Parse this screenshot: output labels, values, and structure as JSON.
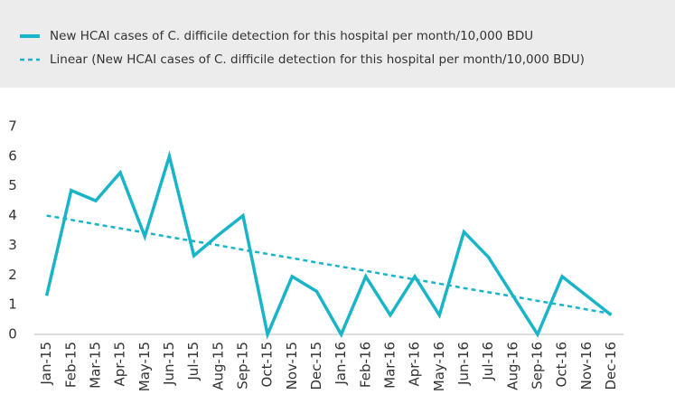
{
  "chart_data": {
    "type": "line",
    "categories": [
      "Jan-15",
      "Feb-15",
      "Mar-15",
      "Apr-15",
      "May-15",
      "Jun-15",
      "Jul-15",
      "Aug-15",
      "Sep-15",
      "Oct-15",
      "Nov-15",
      "Dec-15",
      "Jan-16",
      "Feb-16",
      "Mar-16",
      "Apr-16",
      "May-16",
      "Jun-16",
      "Jul-16",
      "Aug-16",
      "Sep-16",
      "Oct-16",
      "Nov-16",
      "Dec-16"
    ],
    "series": [
      {
        "name": "New HCAI cases of C. difficile detection for this hospital per month/10,000 BDU",
        "color": "#1ab4c8",
        "dash": false,
        "values": [
          1.3,
          4.85,
          4.5,
          5.45,
          3.3,
          6.0,
          2.65,
          3.35,
          4.0,
          0,
          1.95,
          1.45,
          0,
          1.95,
          0.65,
          1.95,
          0.65,
          3.45,
          2.6,
          1.3,
          0,
          1.95,
          1.3,
          0.65
        ]
      },
      {
        "name": "Linear (New HCAI cases of C. difficile detection for this hospital per month/10,000 BDU)",
        "color": "#1ab4c8",
        "dash": true,
        "values": [
          4.0,
          3.86,
          3.71,
          3.57,
          3.43,
          3.28,
          3.14,
          3.0,
          2.85,
          2.71,
          2.57,
          2.42,
          2.28,
          2.14,
          1.99,
          1.85,
          1.71,
          1.56,
          1.42,
          1.28,
          1.13,
          0.99,
          0.84,
          0.7
        ]
      }
    ],
    "ylim": [
      0,
      7
    ],
    "yticks": [
      0,
      1,
      2,
      3,
      4,
      5,
      6,
      7
    ],
    "grid": false
  }
}
